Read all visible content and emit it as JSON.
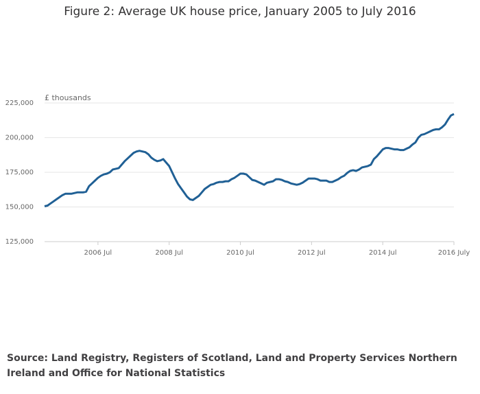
{
  "chart_data": {
    "type": "line",
    "title": "Figure 2: Average UK house price, January 2005 to July 2016",
    "y_label": "£ thousands",
    "source": "Source: Land Registry, Registers of Scotland, Land and Property Services Northern Ireland and Office for National Statistics",
    "x": [
      "2005-01",
      "2005-02",
      "2005-03",
      "2005-04",
      "2005-05",
      "2005-06",
      "2005-07",
      "2005-08",
      "2005-09",
      "2005-10",
      "2005-11",
      "2005-12",
      "2006-01",
      "2006-02",
      "2006-03",
      "2006-04",
      "2006-05",
      "2006-06",
      "2006-07",
      "2006-08",
      "2006-09",
      "2006-10",
      "2006-11",
      "2006-12",
      "2007-01",
      "2007-02",
      "2007-03",
      "2007-04",
      "2007-05",
      "2007-06",
      "2007-07",
      "2007-08",
      "2007-09",
      "2007-10",
      "2007-11",
      "2007-12",
      "2008-01",
      "2008-02",
      "2008-03",
      "2008-04",
      "2008-05",
      "2008-06",
      "2008-07",
      "2008-08",
      "2008-09",
      "2008-10",
      "2008-11",
      "2008-12",
      "2009-01",
      "2009-02",
      "2009-03",
      "2009-04",
      "2009-05",
      "2009-06",
      "2009-07",
      "2009-08",
      "2009-09",
      "2009-10",
      "2009-11",
      "2009-12",
      "2010-01",
      "2010-02",
      "2010-03",
      "2010-04",
      "2010-05",
      "2010-06",
      "2010-07",
      "2010-08",
      "2010-09",
      "2010-10",
      "2010-11",
      "2010-12",
      "2011-01",
      "2011-02",
      "2011-03",
      "2011-04",
      "2011-05",
      "2011-06",
      "2011-07",
      "2011-08",
      "2011-09",
      "2011-10",
      "2011-11",
      "2011-12",
      "2012-01",
      "2012-02",
      "2012-03",
      "2012-04",
      "2012-05",
      "2012-06",
      "2012-07",
      "2012-08",
      "2012-09",
      "2012-10",
      "2012-11",
      "2012-12",
      "2013-01",
      "2013-02",
      "2013-03",
      "2013-04",
      "2013-05",
      "2013-06",
      "2013-07",
      "2013-08",
      "2013-09",
      "2013-10",
      "2013-11",
      "2013-12",
      "2014-01",
      "2014-02",
      "2014-03",
      "2014-04",
      "2014-05",
      "2014-06",
      "2014-07",
      "2014-08",
      "2014-09",
      "2014-10",
      "2014-11",
      "2014-12",
      "2015-01",
      "2015-02",
      "2015-03",
      "2015-04",
      "2015-05",
      "2015-06",
      "2015-07",
      "2015-08",
      "2015-09",
      "2015-10",
      "2015-11",
      "2015-12",
      "2016-01",
      "2016-02",
      "2016-03",
      "2016-04",
      "2016-05",
      "2016-06",
      "2016-07"
    ],
    "series": [
      {
        "name": "Average UK house price",
        "color": "#206095",
        "values": [
          150500,
          151000,
          152500,
          154000,
          155500,
          157000,
          158500,
          159500,
          159500,
          159500,
          160000,
          160500,
          160500,
          160500,
          161000,
          165000,
          167000,
          169000,
          171000,
          172500,
          173500,
          174000,
          175000,
          177000,
          177500,
          178000,
          180500,
          183000,
          185000,
          187000,
          189000,
          190000,
          190500,
          190000,
          189500,
          188000,
          185500,
          184000,
          183000,
          183500,
          184500,
          182000,
          179500,
          175000,
          170500,
          166500,
          163500,
          160500,
          157500,
          155500,
          155000,
          156500,
          158000,
          160500,
          163000,
          164500,
          166000,
          166500,
          167500,
          168000,
          168000,
          168500,
          168500,
          170000,
          171000,
          172500,
          174000,
          174000,
          173500,
          171500,
          169500,
          169000,
          168000,
          167000,
          166000,
          167500,
          168000,
          168500,
          170000,
          170000,
          169500,
          168500,
          168000,
          167000,
          166500,
          166000,
          166500,
          167500,
          169000,
          170500,
          170500,
          170500,
          170000,
          169000,
          169000,
          169000,
          168000,
          168000,
          169000,
          170000,
          171500,
          172500,
          174500,
          176000,
          176500,
          176000,
          177000,
          178500,
          179000,
          179500,
          180500,
          184500,
          186500,
          189000,
          191500,
          192500,
          192500,
          192000,
          191500,
          191500,
          191000,
          191000,
          192000,
          193000,
          195000,
          196500,
          200000,
          202000,
          202500,
          203500,
          204500,
          205500,
          206000,
          206000,
          207500,
          209500,
          213000,
          216000,
          217000
        ]
      }
    ],
    "xticks": [
      {
        "value": "2006-07",
        "label": "2006 Jul"
      },
      {
        "value": "2008-07",
        "label": "2008 Jul"
      },
      {
        "value": "2010-07",
        "label": "2010 Jul"
      },
      {
        "value": "2012-07",
        "label": "2012 Jul"
      },
      {
        "value": "2014-07",
        "label": "2014 Jul"
      },
      {
        "value": "2016-07",
        "label": "2016 July"
      }
    ],
    "ylim": [
      125000,
      225000
    ],
    "yticks": [
      {
        "value": 125000,
        "label": "125,000"
      },
      {
        "value": 150000,
        "label": "150,000"
      },
      {
        "value": 175000,
        "label": "175,000"
      },
      {
        "value": 200000,
        "label": "200,000"
      },
      {
        "value": 225000,
        "label": "225,000"
      }
    ],
    "grid": true
  }
}
